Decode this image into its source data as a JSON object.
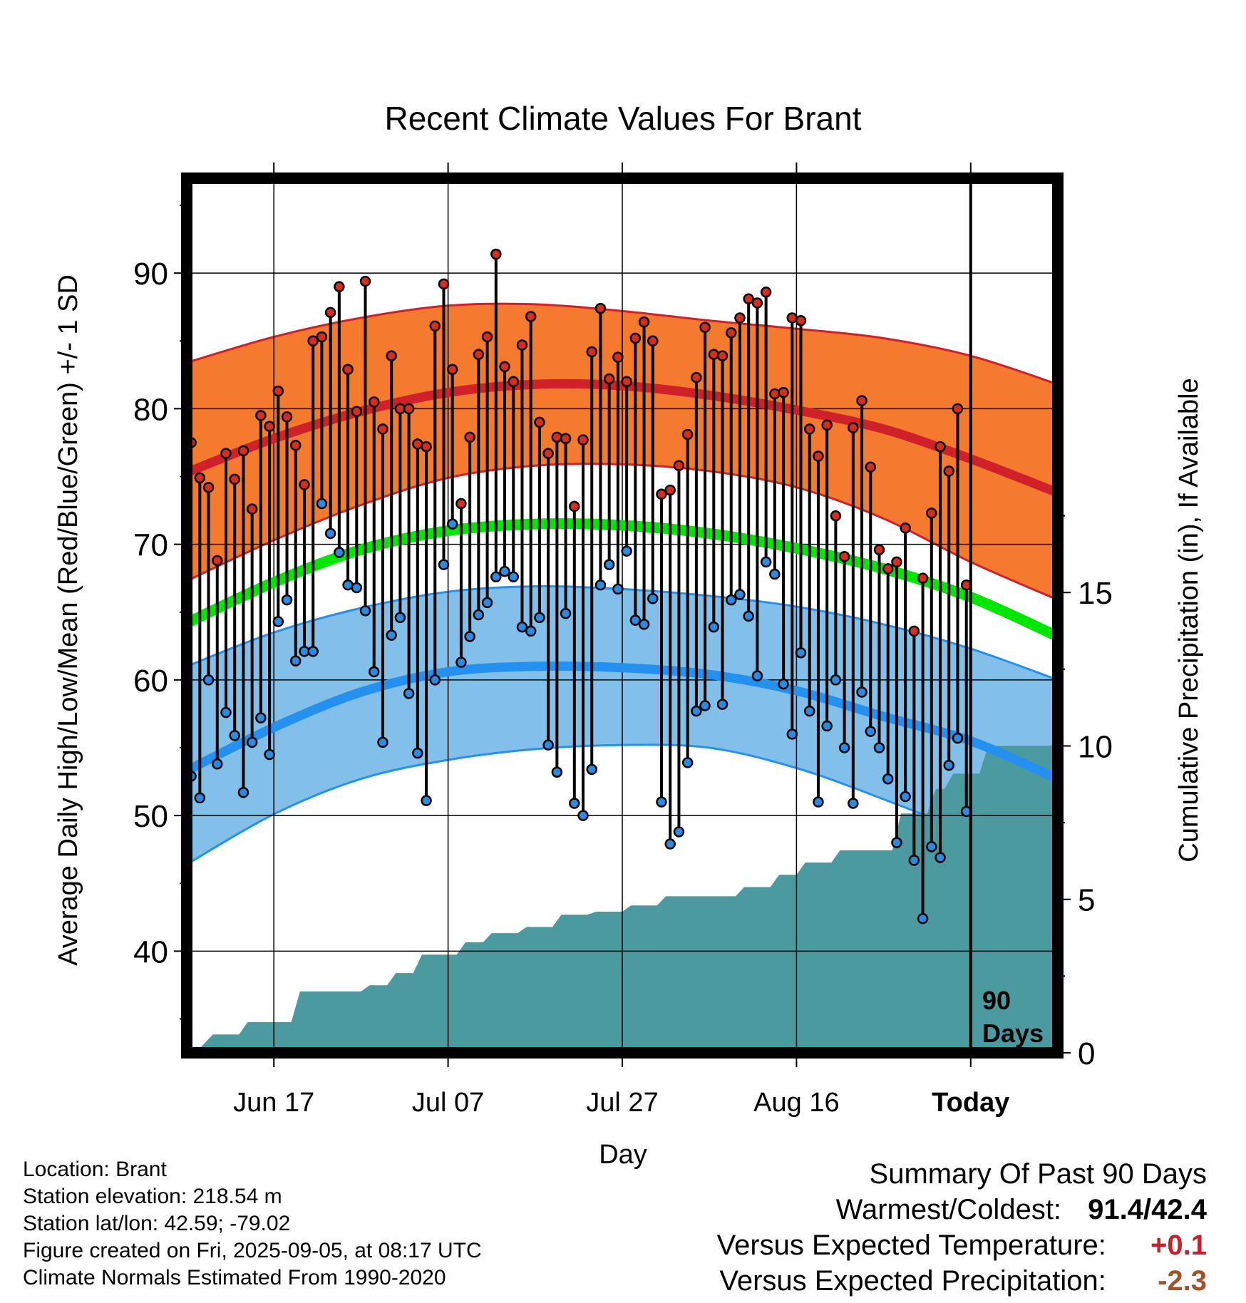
{
  "chart_data": {
    "type": "line",
    "title": "Recent Climate Values For Brant",
    "xlabel": "Day",
    "ylabel_left": "Average Daily High/Low/Mean (Red/Blue/Green) +/- 1 SD",
    "ylabel_right": "Cumulative Precipitation (in), If Available",
    "x_tick_labels": [
      "Jun 17",
      "Jul 07",
      "Jul 27",
      "Aug 16",
      "Today"
    ],
    "y_left_ticks": [
      "40",
      "50",
      "60",
      "70",
      "80",
      "90"
    ],
    "y_right_ticks": [
      "0",
      "5",
      "10",
      "15"
    ],
    "ylim_left": [
      32.5,
      97
    ],
    "ylim_right": [
      0,
      28.5
    ],
    "xlim_days": [
      -90,
      10
    ],
    "grid": true,
    "today_marker": {
      "label_line1": "90",
      "label_line2": "Days"
    },
    "normals": {
      "days": [
        -90,
        -80,
        -70,
        -60,
        -50,
        -40,
        -30,
        -20,
        -10,
        0,
        10
      ],
      "high_mean": [
        75.3,
        77.8,
        79.8,
        81.2,
        81.8,
        81.7,
        81.0,
        79.9,
        78.5,
        76.3,
        73.8
      ],
      "high_upper": [
        83.4,
        85.3,
        86.7,
        87.6,
        87.7,
        87.2,
        86.5,
        85.9,
        85.2,
        83.9,
        81.8
      ],
      "high_lower": [
        67.3,
        70.3,
        72.9,
        74.9,
        75.8,
        75.9,
        75.4,
        74.2,
        71.9,
        68.7,
        65.9
      ],
      "mean_mean": [
        64.2,
        67.2,
        69.6,
        71.0,
        71.5,
        71.4,
        70.8,
        69.7,
        68.2,
        66.1,
        63.2
      ],
      "low_mean": [
        53.3,
        56.5,
        59.1,
        60.6,
        61.0,
        60.9,
        60.4,
        59.2,
        57.3,
        55.5,
        52.7
      ],
      "low_upper": [
        61.0,
        63.5,
        65.3,
        66.5,
        66.9,
        66.7,
        66.2,
        65.4,
        64.1,
        62.3,
        60.0
      ],
      "low_lower": [
        46.4,
        50.1,
        52.7,
        54.1,
        54.9,
        55.2,
        55.0,
        53.5,
        51.2,
        48.6,
        45.4
      ]
    },
    "daily_high": [
      77.5,
      74.9,
      74.2,
      68.8,
      76.7,
      74.8,
      76.9,
      72.6,
      79.5,
      78.7,
      81.3,
      79.4,
      77.3,
      74.4,
      85.0,
      85.3,
      87.1,
      89.0,
      82.9,
      79.8,
      89.4,
      80.5,
      78.5,
      83.9,
      80.0,
      80.0,
      77.4,
      77.2,
      86.1,
      89.2,
      82.9,
      73.0,
      77.9,
      84.0,
      85.3,
      91.4,
      83.1,
      82.0,
      84.7,
      86.8,
      79.0,
      76.7,
      77.9,
      77.8,
      72.8,
      77.7,
      84.2,
      87.4,
      82.2,
      83.8,
      82.0,
      85.2,
      86.4,
      85.0,
      73.7,
      74.0,
      75.8,
      78.1,
      82.3,
      86.0,
      84.0,
      83.9,
      85.6,
      86.7,
      88.1,
      87.8,
      88.6,
      81.1,
      81.2,
      86.7,
      86.5,
      78.5,
      76.5,
      78.8,
      72.1,
      69.1,
      78.6,
      80.6,
      75.7,
      69.6,
      68.2,
      68.7,
      71.2,
      63.6,
      67.5,
      72.3,
      77.2,
      75.4,
      80.0,
      67.0
    ],
    "daily_low": [
      52.9,
      51.3,
      60.0,
      53.8,
      57.6,
      55.9,
      51.7,
      55.4,
      57.2,
      54.5,
      64.3,
      65.9,
      61.4,
      62.1,
      62.1,
      73.0,
      70.8,
      69.4,
      67.0,
      66.8,
      65.1,
      60.6,
      55.4,
      63.3,
      64.6,
      59.0,
      54.6,
      51.1,
      60.0,
      68.5,
      71.5,
      61.3,
      63.2,
      64.8,
      65.7,
      67.6,
      68.0,
      67.6,
      63.9,
      63.6,
      64.6,
      55.2,
      53.2,
      64.9,
      50.9,
      50.0,
      53.4,
      67.0,
      68.5,
      66.7,
      69.5,
      64.4,
      64.1,
      66.0,
      51.0,
      47.9,
      48.8,
      53.9,
      57.7,
      58.1,
      63.9,
      58.2,
      65.9,
      66.3,
      64.7,
      60.3,
      68.7,
      67.8,
      59.7,
      56.0,
      62.0,
      57.7,
      51.0,
      56.6,
      60.0,
      55.0,
      50.9,
      59.1,
      56.2,
      55.0,
      52.7,
      48.0,
      51.4,
      46.7,
      42.4,
      47.7,
      46.9,
      53.7,
      55.7,
      50.3
    ],
    "precip_steps": [
      [
        -89,
        0
      ],
      [
        -87,
        0.6
      ],
      [
        -84,
        0.6
      ],
      [
        -83,
        1.0
      ],
      [
        -78,
        1.0
      ],
      [
        -77,
        2.0
      ],
      [
        -70,
        2.0
      ],
      [
        -69,
        2.2
      ],
      [
        -67,
        2.2
      ],
      [
        -66,
        2.6
      ],
      [
        -64,
        2.6
      ],
      [
        -63,
        3.2
      ],
      [
        -59,
        3.2
      ],
      [
        -58,
        3.6
      ],
      [
        -56,
        3.6
      ],
      [
        -55,
        3.9
      ],
      [
        -52,
        3.9
      ],
      [
        -51,
        4.1
      ],
      [
        -48,
        4.1
      ],
      [
        -47,
        4.5
      ],
      [
        -44,
        4.5
      ],
      [
        -43,
        4.6
      ],
      [
        -40,
        4.6
      ],
      [
        -39,
        4.8
      ],
      [
        -36,
        4.8
      ],
      [
        -35,
        5.1
      ],
      [
        -27,
        5.1
      ],
      [
        -26,
        5.4
      ],
      [
        -23,
        5.4
      ],
      [
        -22,
        5.8
      ],
      [
        -20,
        5.8
      ],
      [
        -19,
        6.2
      ],
      [
        -16,
        6.2
      ],
      [
        -15,
        6.6
      ],
      [
        -9,
        6.6
      ],
      [
        -8,
        7.8
      ],
      [
        -5,
        7.8
      ],
      [
        -4,
        8.6
      ],
      [
        -3,
        8.6
      ],
      [
        -2,
        9.1
      ],
      [
        1,
        9.1
      ],
      [
        2,
        10.0
      ],
      [
        9,
        10.0
      ],
      [
        10,
        10.1
      ]
    ],
    "colors": {
      "high_band": "#f47a2e",
      "high_line": "#d0202a",
      "low_band": "#82c0e9",
      "low_line": "#2490f0",
      "mean_line": "#00e600",
      "precip": "#4a9aa0",
      "high_dot": "#d62d20",
      "low_dot": "#2b8be0"
    }
  },
  "info": {
    "location": "Location: Brant",
    "elevation": "Station elevation: 218.54 m",
    "latlon": "Station lat/lon: 42.59; -79.02",
    "created": "Figure created on Fri, 2025-09-05, at 08:17 UTC",
    "normals": "Climate Normals Estimated From 1990-2020"
  },
  "summary": {
    "title": "Summary Of Past 90 Days",
    "warmest_coldest_label": "Warmest/Coldest:",
    "warmest_coldest_value": "91.4/42.4",
    "temp_label": "Versus Expected Temperature:",
    "temp_value": "+0.1",
    "temp_color": "#c8202a",
    "precip_label": "Versus Expected Precipitation:",
    "precip_value": "-2.3",
    "precip_color": "#a0522d"
  }
}
